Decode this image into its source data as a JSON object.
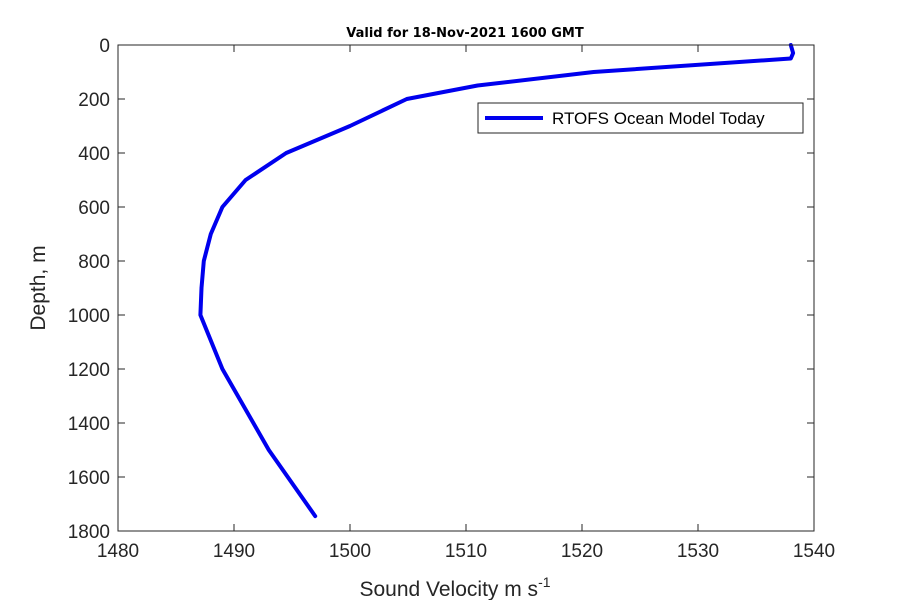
{
  "chart_data": {
    "type": "line",
    "title": "Valid for 18-Nov-2021 1600 GMT",
    "xlabel": "Sound Velocity m s",
    "xlabel_superscript": "-1",
    "ylabel": "Depth, m",
    "xlim": [
      1480,
      1540
    ],
    "ylim": [
      0,
      1800
    ],
    "y_reversed": true,
    "xticks": [
      1480,
      1490,
      1500,
      1510,
      1520,
      1530,
      1540
    ],
    "yticks": [
      0,
      200,
      400,
      600,
      800,
      1000,
      1200,
      1400,
      1600,
      1800
    ],
    "grid": false,
    "legend_position": "top-right",
    "series": [
      {
        "name": "RTOFS Ocean Model Today",
        "color": "#0000ee",
        "x": [
          1538.0,
          1538.2,
          1538.0,
          1521.0,
          1511.0,
          1504.9,
          1500.0,
          1494.5,
          1491.0,
          1489.0,
          1488.0,
          1487.4,
          1487.2,
          1487.1,
          1489.0,
          1493.0,
          1497.0
        ],
        "y": [
          0,
          30,
          50,
          100,
          150,
          200,
          300,
          400,
          500,
          600,
          700,
          800,
          900,
          1000,
          1200,
          1500,
          1745
        ]
      }
    ]
  }
}
